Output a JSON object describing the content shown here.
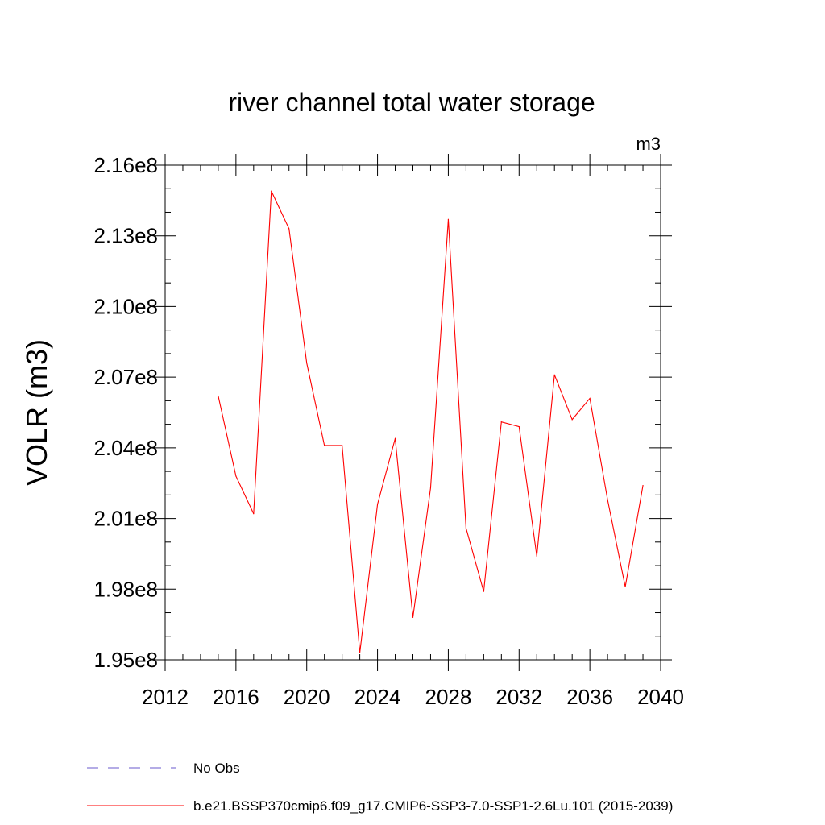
{
  "chart_data": {
    "type": "line",
    "title": "river channel total water storage",
    "units_label": "m3",
    "ylabel": "VOLR  (m3)",
    "xlabel": "",
    "xlim": [
      2012,
      2040
    ],
    "ylim": [
      195000000,
      216000000
    ],
    "x_ticks": [
      {
        "value": 2012,
        "label": "2012"
      },
      {
        "value": 2016,
        "label": "2016"
      },
      {
        "value": 2020,
        "label": "2020"
      },
      {
        "value": 2024,
        "label": "2024"
      },
      {
        "value": 2028,
        "label": "2028"
      },
      {
        "value": 2032,
        "label": "2032"
      },
      {
        "value": 2036,
        "label": "2036"
      },
      {
        "value": 2040,
        "label": "2040"
      }
    ],
    "y_ticks": [
      {
        "value": 216000000,
        "label": "2.16e8"
      },
      {
        "value": 213000000,
        "label": "2.13e8"
      },
      {
        "value": 210000000,
        "label": "2.10e8"
      },
      {
        "value": 207000000,
        "label": "2.07e8"
      },
      {
        "value": 204000000,
        "label": "2.04e8"
      },
      {
        "value": 201000000,
        "label": "2.01e8"
      },
      {
        "value": 198000000,
        "label": "1.98e8"
      },
      {
        "value": 195000000,
        "label": "1.95e8"
      }
    ],
    "series": [
      {
        "name": "b.e21.BSSP370cmip6.f09_g17.CMIP6-SSP3-7.0-SSP1-2.6Lu.101 (2015-2039)",
        "color": "#ff0000",
        "x": [
          2015,
          2016,
          2017,
          2018,
          2019,
          2020,
          2021,
          2022,
          2023,
          2024,
          2025,
          2026,
          2027,
          2028,
          2029,
          2030,
          2031,
          2032,
          2033,
          2034,
          2035,
          2036,
          2037,
          2038,
          2039
        ],
        "values": [
          206200000,
          202800000,
          201200000,
          214900000,
          213300000,
          207600000,
          204100000,
          204100000,
          195300000,
          201600000,
          204400000,
          196800000,
          202300000,
          213700000,
          200600000,
          197900000,
          205100000,
          204900000,
          199400000,
          207100000,
          205200000,
          206100000,
          201800000,
          198100000,
          202400000
        ]
      }
    ],
    "legend": {
      "placement": "bottom",
      "entries": [
        {
          "label": "No Obs",
          "color": "#6a5acd",
          "style": "dashed"
        },
        {
          "label": "b.e21.BSSP370cmip6.f09_g17.CMIP6-SSP3-7.0-SSP1-2.6Lu.101 (2015-2039)",
          "color": "#ff0000",
          "style": "solid"
        }
      ]
    }
  }
}
